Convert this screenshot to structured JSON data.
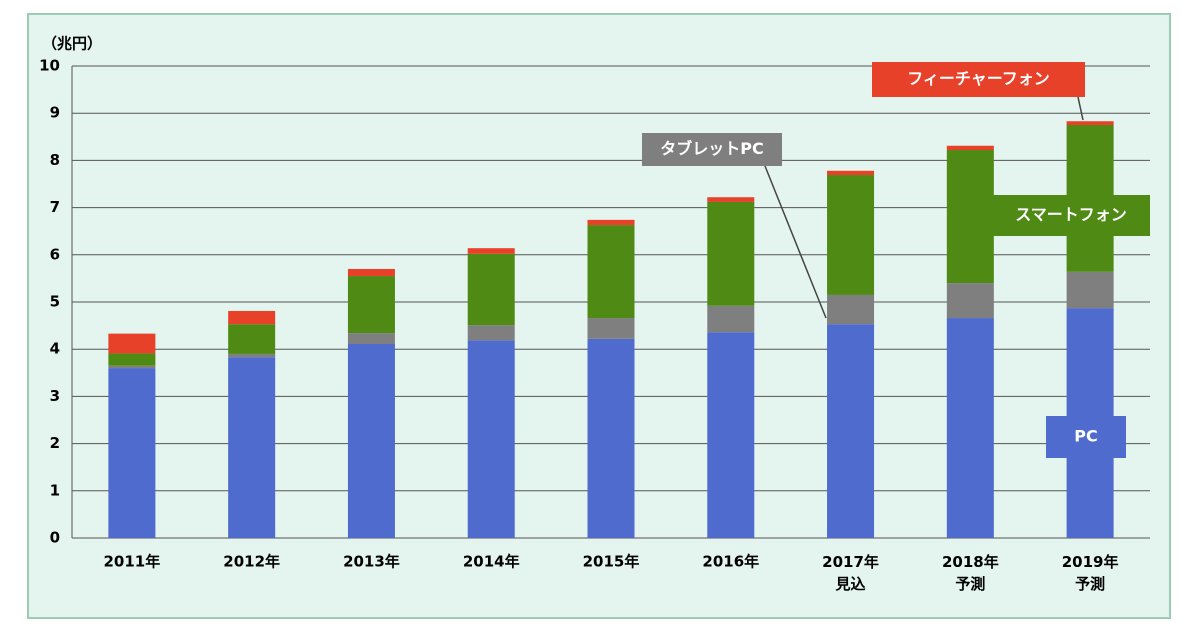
{
  "chart_data": {
    "type": "stacked_bar",
    "y_axis_label": "（兆円）",
    "categories": [
      "2011年",
      "2012年",
      "2013年",
      "2014年",
      "2015年",
      "2016年",
      "2017年\n見込",
      "2018年\n予測",
      "2019年\n予測"
    ],
    "series": [
      {
        "name": "PC",
        "color": "#4f6bcd",
        "values": [
          3.6,
          3.83,
          4.11,
          4.19,
          4.22,
          4.36,
          4.53,
          4.66,
          4.87
        ]
      },
      {
        "name": "タブレットPC",
        "color": "#7f7f7f",
        "values": [
          0.05,
          0.07,
          0.23,
          0.32,
          0.44,
          0.56,
          0.62,
          0.74,
          0.77
        ]
      },
      {
        "name": "スマートフォン",
        "color": "#4e8a14",
        "values": [
          0.26,
          0.63,
          1.21,
          1.51,
          1.97,
          2.2,
          2.54,
          2.82,
          3.11
        ]
      },
      {
        "name": "フィーチャーフォン",
        "color": "#e8412a",
        "values": [
          0.42,
          0.28,
          0.15,
          0.12,
          0.11,
          0.1,
          0.09,
          0.09,
          0.08
        ]
      }
    ],
    "ylim": [
      0,
      10
    ],
    "yticks": [
      0,
      1,
      2,
      3,
      4,
      5,
      6,
      7,
      8,
      9,
      10
    ],
    "grid": true
  }
}
